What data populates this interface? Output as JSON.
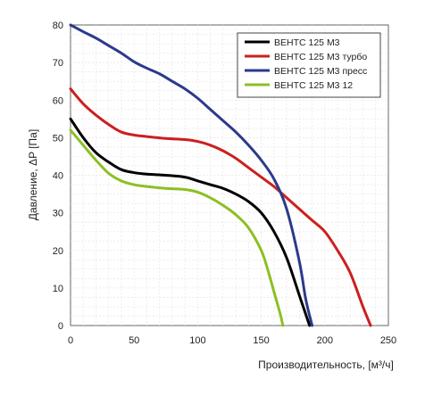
{
  "chart_data": {
    "type": "line",
    "title": "",
    "xlabel": "Производительность, [м³/ч]",
    "ylabel": "Давление, ΔP [Па]",
    "xlim": [
      0,
      250
    ],
    "ylim": [
      0,
      80
    ],
    "xticks": [
      0,
      50,
      100,
      150,
      200,
      250
    ],
    "yticks": [
      0,
      10,
      20,
      30,
      40,
      50,
      60,
      70,
      80
    ],
    "grid": true,
    "legend_position": "top-right",
    "series": [
      {
        "name": "ВЕНТС 125 М3",
        "color": "#000000",
        "x": [
          0,
          10,
          20,
          30,
          40,
          50,
          60,
          75,
          90,
          100,
          110,
          120,
          130,
          140,
          150,
          160,
          170,
          180,
          185,
          188
        ],
        "y": [
          55,
          50,
          46,
          43.5,
          41.5,
          40.7,
          40.3,
          40,
          39.5,
          38.5,
          37.5,
          36.5,
          35,
          33,
          30,
          25,
          18,
          8,
          3,
          0
        ]
      },
      {
        "name": "ВЕНТС 125 М3 турбо",
        "color": "#cc1f1f",
        "x": [
          0,
          10,
          20,
          30,
          40,
          50,
          60,
          75,
          90,
          100,
          110,
          120,
          130,
          140,
          150,
          160,
          170,
          180,
          190,
          200,
          210,
          220,
          230,
          236
        ],
        "y": [
          63,
          59,
          56,
          53.5,
          51.5,
          50.7,
          50.3,
          49.8,
          49.5,
          49,
          48,
          46.5,
          44.5,
          42,
          39.5,
          37,
          34,
          31,
          28,
          25,
          20,
          14,
          5,
          0
        ]
      },
      {
        "name": "ВЕНТС 125 М3 пресс",
        "color": "#2b3a8c",
        "x": [
          0,
          10,
          20,
          30,
          40,
          50,
          60,
          70,
          80,
          90,
          100,
          110,
          120,
          130,
          140,
          150,
          160,
          170,
          180,
          185,
          190
        ],
        "y": [
          80,
          78.2,
          76.5,
          74.5,
          72.5,
          70.2,
          68.5,
          67,
          65,
          63,
          60.5,
          57.5,
          54.5,
          51.5,
          48,
          44,
          39,
          31,
          17,
          7,
          0
        ]
      },
      {
        "name": "ВЕНТС 125 М3  12",
        "color": "#8dbf24",
        "x": [
          0,
          10,
          20,
          30,
          40,
          50,
          60,
          75,
          90,
          100,
          110,
          120,
          130,
          140,
          150,
          155,
          160,
          165,
          167
        ],
        "y": [
          52,
          48,
          44,
          40.5,
          38.5,
          37.5,
          37,
          36.5,
          36.2,
          35.5,
          34,
          32,
          29.5,
          26,
          20,
          15,
          9,
          3,
          0
        ]
      }
    ]
  }
}
